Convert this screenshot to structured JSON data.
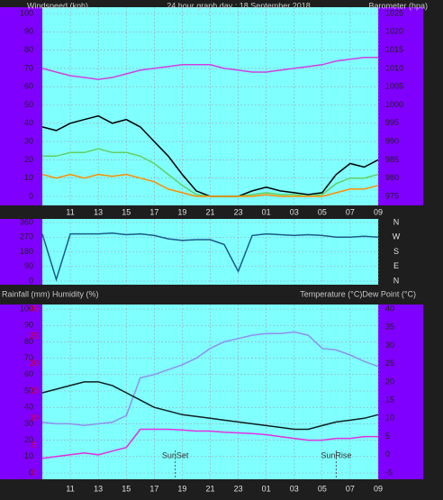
{
  "chart_data": [
    {
      "type": "line",
      "title": "24 hour graph day : 18 September 2018",
      "y_label": "Windspeed (kph)",
      "y2_label": "Barometer (hpa)",
      "xlim": [
        0,
        24
      ],
      "xticks": [
        {
          "value": 2,
          "label": "11"
        },
        {
          "value": 4,
          "label": "13"
        },
        {
          "value": 6,
          "label": "15"
        },
        {
          "value": 8,
          "label": "17"
        },
        {
          "value": 10,
          "label": "19"
        },
        {
          "value": 12,
          "label": "21"
        },
        {
          "value": 14,
          "label": "23"
        },
        {
          "value": 16,
          "label": "01"
        },
        {
          "value": 18,
          "label": "03"
        },
        {
          "value": 20,
          "label": "05"
        },
        {
          "value": 22,
          "label": "07"
        },
        {
          "value": 24,
          "label": "09"
        }
      ],
      "ylim": [
        0,
        100
      ],
      "yticks": [
        0,
        10,
        20,
        30,
        40,
        50,
        60,
        70,
        80,
        90,
        100
      ],
      "y2lim": [
        975,
        1025
      ],
      "y2ticks": [
        975,
        980,
        985,
        990,
        995,
        1000,
        1005,
        1010,
        1015,
        1020,
        1025
      ],
      "grid": true,
      "x": [
        0,
        1,
        2,
        3,
        4,
        5,
        6,
        7,
        8,
        9,
        10,
        11,
        12,
        13,
        14,
        15,
        16,
        17,
        18,
        19,
        20,
        21,
        22,
        23,
        24
      ],
      "series": [
        {
          "color": "#000000",
          "values": [
            38,
            36,
            40,
            42,
            44,
            40,
            42,
            38,
            30,
            22,
            12,
            3,
            0,
            0,
            0,
            3,
            5,
            3,
            2,
            1,
            2,
            12,
            18,
            16,
            20
          ]
        },
        {
          "color": "#60d060",
          "values": [
            22,
            22,
            24,
            24,
            26,
            24,
            24,
            22,
            18,
            12,
            6,
            1,
            0,
            0,
            0,
            1,
            2,
            1,
            1,
            0,
            1,
            7,
            10,
            10,
            12
          ]
        },
        {
          "color": "#ff8c00",
          "values": [
            12,
            10,
            12,
            10,
            12,
            11,
            12,
            10,
            8,
            4,
            2,
            0,
            0,
            0,
            0,
            0,
            1,
            0,
            0,
            0,
            0,
            2,
            4,
            4,
            6
          ]
        },
        {
          "color": "#d040e0",
          "axis": "y2",
          "values": [
            1010,
            1009,
            1008,
            1007.5,
            1007,
            1007.5,
            1008.5,
            1009.5,
            1010,
            1010.5,
            1011,
            1011,
            1011,
            1010,
            1009.5,
            1009,
            1009,
            1009.5,
            1010,
            1010.5,
            1011,
            1012,
            1012.5,
            1013,
            1013
          ]
        }
      ]
    },
    {
      "type": "line",
      "xlim": [
        0,
        24
      ],
      "ylim": [
        0,
        360
      ],
      "yticks": [
        0,
        90,
        180,
        270,
        360
      ],
      "y2lim": [
        0,
        360
      ],
      "y2ticks": [
        {
          "value": 360,
          "label": "N"
        },
        {
          "value": 270,
          "label": "W"
        },
        {
          "value": 180,
          "label": "S"
        },
        {
          "value": 90,
          "label": "E"
        },
        {
          "value": 0,
          "label": "N"
        }
      ],
      "grid": true,
      "x": [
        0,
        1,
        2,
        3,
        4,
        5,
        6,
        7,
        8,
        9,
        10,
        11,
        12,
        13,
        14,
        15,
        16,
        17,
        18,
        19,
        20,
        21,
        22,
        23,
        24
      ],
      "series": [
        {
          "color": "#1a5a8a",
          "values": [
            290,
            10,
            290,
            290,
            290,
            295,
            285,
            290,
            280,
            260,
            250,
            255,
            255,
            225,
            60,
            280,
            290,
            285,
            280,
            285,
            280,
            270,
            270,
            275,
            270
          ]
        }
      ]
    },
    {
      "type": "line",
      "y_label": "Rainfall (mm)  Humidity (%)",
      "y2_label": "Temperature (°C)Dew Point (°C)",
      "xlim": [
        0,
        24
      ],
      "xticks": [
        {
          "value": 2,
          "label": "11"
        },
        {
          "value": 4,
          "label": "13"
        },
        {
          "value": 6,
          "label": "15"
        },
        {
          "value": 8,
          "label": "17"
        },
        {
          "value": 10,
          "label": "19"
        },
        {
          "value": 12,
          "label": "21"
        },
        {
          "value": 14,
          "label": "23"
        },
        {
          "value": 16,
          "label": "01"
        },
        {
          "value": 18,
          "label": "03"
        },
        {
          "value": 20,
          "label": "05"
        },
        {
          "value": 22,
          "label": "07"
        },
        {
          "value": 24,
          "label": "09"
        }
      ],
      "ylim": [
        0,
        100
      ],
      "yticks": [
        0,
        10,
        20,
        30,
        40,
        50,
        60,
        70,
        80,
        90,
        100
      ],
      "y3lim": [
        0,
        30
      ],
      "y3ticks": [
        0,
        5,
        10,
        15,
        20,
        25,
        30
      ],
      "y3color": "#e00000",
      "y2lim": [
        -5,
        40
      ],
      "y2ticks": [
        -5,
        0,
        5,
        10,
        15,
        20,
        25,
        30,
        35,
        40
      ],
      "grid": true,
      "x": [
        0,
        1,
        2,
        3,
        4,
        5,
        6,
        7,
        8,
        9,
        10,
        11,
        12,
        13,
        14,
        15,
        16,
        17,
        18,
        19,
        20,
        21,
        22,
        23,
        24
      ],
      "series": [
        {
          "color": "#9090f0",
          "values": [
            31,
            30,
            30,
            29,
            30,
            31,
            35,
            58,
            60,
            63,
            66,
            70,
            76,
            80,
            82,
            84,
            85,
            85,
            86,
            84,
            76,
            75,
            72,
            68,
            65
          ]
        },
        {
          "color": "#102020",
          "axis": "y2",
          "values": [
            17,
            18,
            19,
            20,
            20,
            19,
            17,
            15,
            13,
            12,
            11,
            10.5,
            10,
            9.5,
            9,
            8.5,
            8,
            7.5,
            7,
            7,
            8,
            9,
            9.5,
            10,
            11
          ]
        },
        {
          "color": "#e030e0",
          "axis": "y2",
          "values": [
            -1,
            -0.5,
            0,
            0.5,
            0,
            1,
            2,
            7,
            7,
            7,
            6.8,
            6.5,
            6.5,
            6.2,
            6,
            5.8,
            5.5,
            5,
            4.5,
            4,
            4,
            4.5,
            4.5,
            5,
            5
          ]
        }
      ],
      "annotations": [
        {
          "label": "SunSet",
          "x": 9.5
        },
        {
          "label": "SunRise",
          "x": 21
        }
      ]
    }
  ]
}
